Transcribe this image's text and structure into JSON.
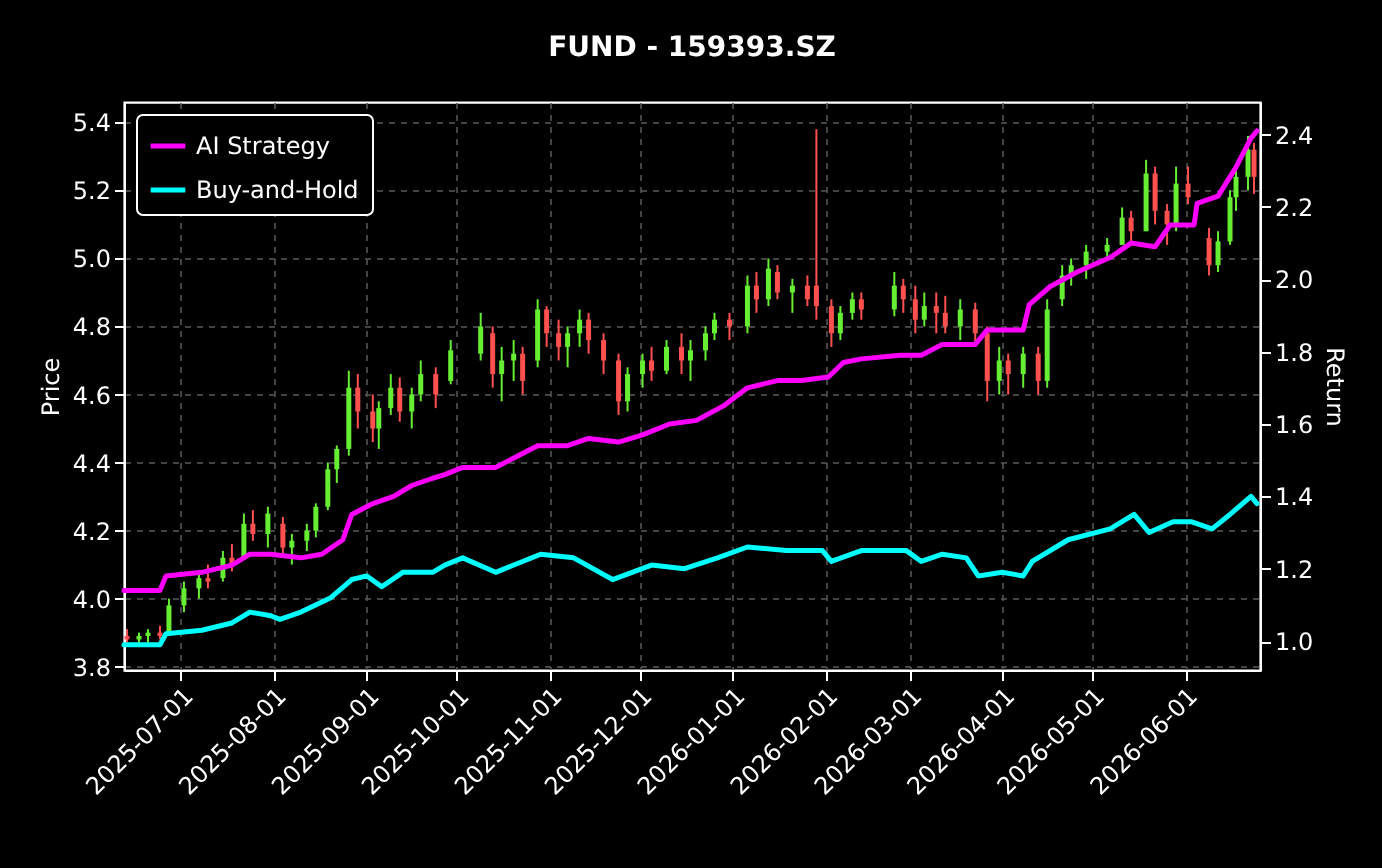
{
  "chart_data": {
    "type": "candlestick",
    "title": "FUND - 159393.SZ",
    "ylabel": "Price",
    "y2label": "Return",
    "x": [
      "2025-06-13",
      "2025-06-17",
      "2025-06-20",
      "2025-06-24",
      "2025-06-27",
      "2025-07-02",
      "2025-07-07",
      "2025-07-10",
      "2025-07-15",
      "2025-07-18",
      "2025-07-22",
      "2025-07-25",
      "2025-07-30",
      "2025-08-04",
      "2025-08-07",
      "2025-08-12",
      "2025-08-15",
      "2025-08-19",
      "2025-08-22",
      "2025-08-26",
      "2025-08-29",
      "2025-09-03",
      "2025-09-05",
      "2025-09-09",
      "2025-09-12",
      "2025-09-16",
      "2025-09-19",
      "2025-09-24",
      "2025-09-29",
      "2025-10-09",
      "2025-10-13",
      "2025-10-16",
      "2025-10-20",
      "2025-10-23",
      "2025-10-28",
      "2025-10-31",
      "2025-11-04",
      "2025-11-07",
      "2025-11-11",
      "2025-11-14",
      "2025-11-19",
      "2025-11-24",
      "2025-11-27",
      "2025-12-02",
      "2025-12-05",
      "2025-12-10",
      "2025-12-15",
      "2025-12-18",
      "2025-12-23",
      "2025-12-26",
      "2025-12-31",
      "2026-01-06",
      "2026-01-09",
      "2026-01-13",
      "2026-01-16",
      "2026-01-21",
      "2026-01-26",
      "2026-01-29",
      "2026-02-03",
      "2026-02-06",
      "2026-02-10",
      "2026-02-13",
      "2026-02-24",
      "2026-02-27",
      "2026-03-03",
      "2026-03-06",
      "2026-03-10",
      "2026-03-13",
      "2026-03-18",
      "2026-03-23",
      "2026-03-27",
      "2026-03-31",
      "2026-04-03",
      "2026-04-08",
      "2026-04-13",
      "2026-04-16",
      "2026-04-21",
      "2026-04-24",
      "2026-04-29",
      "2026-05-06",
      "2026-05-11",
      "2026-05-14",
      "2026-05-19",
      "2026-05-22",
      "2026-05-26",
      "2026-05-29",
      "2026-06-02",
      "2026-06-09",
      "2026-06-12",
      "2026-06-16",
      "2026-06-18",
      "2026-06-22",
      "2026-06-24"
    ],
    "ohlc": [
      [
        3.89,
        3.91,
        3.87,
        3.88
      ],
      [
        3.88,
        3.9,
        3.86,
        3.89
      ],
      [
        3.89,
        3.91,
        3.87,
        3.9
      ],
      [
        3.9,
        3.92,
        3.88,
        3.89
      ],
      [
        3.9,
        4.0,
        3.9,
        3.98
      ],
      [
        3.98,
        4.05,
        3.96,
        4.03
      ],
      [
        4.03,
        4.08,
        4.0,
        4.06
      ],
      [
        4.06,
        4.1,
        4.03,
        4.05
      ],
      [
        4.06,
        4.14,
        4.05,
        4.12
      ],
      [
        4.12,
        4.16,
        4.08,
        4.1
      ],
      [
        4.12,
        4.25,
        4.12,
        4.22
      ],
      [
        4.22,
        4.26,
        4.17,
        4.19
      ],
      [
        4.19,
        4.27,
        4.15,
        4.25
      ],
      [
        4.22,
        4.24,
        4.13,
        4.15
      ],
      [
        4.15,
        4.19,
        4.1,
        4.17
      ],
      [
        4.17,
        4.22,
        4.14,
        4.2
      ],
      [
        4.2,
        4.28,
        4.18,
        4.27
      ],
      [
        4.27,
        4.4,
        4.26,
        4.38
      ],
      [
        4.38,
        4.45,
        4.34,
        4.44
      ],
      [
        4.44,
        4.67,
        4.42,
        4.62
      ],
      [
        4.62,
        4.66,
        4.5,
        4.55
      ],
      [
        4.55,
        4.6,
        4.46,
        4.5
      ],
      [
        4.5,
        4.58,
        4.44,
        4.56
      ],
      [
        4.56,
        4.66,
        4.54,
        4.62
      ],
      [
        4.62,
        4.65,
        4.52,
        4.55
      ],
      [
        4.55,
        4.62,
        4.5,
        4.6
      ],
      [
        4.6,
        4.7,
        4.58,
        4.66
      ],
      [
        4.66,
        4.68,
        4.56,
        4.6
      ],
      [
        4.64,
        4.76,
        4.63,
        4.73
      ],
      [
        4.72,
        4.84,
        4.7,
        4.8
      ],
      [
        4.78,
        4.8,
        4.62,
        4.66
      ],
      [
        4.66,
        4.74,
        4.58,
        4.7
      ],
      [
        4.7,
        4.76,
        4.64,
        4.72
      ],
      [
        4.72,
        4.74,
        4.6,
        4.64
      ],
      [
        4.7,
        4.88,
        4.68,
        4.85
      ],
      [
        4.85,
        4.86,
        4.74,
        4.78
      ],
      [
        4.78,
        4.82,
        4.7,
        4.74
      ],
      [
        4.74,
        4.8,
        4.68,
        4.78
      ],
      [
        4.78,
        4.85,
        4.74,
        4.82
      ],
      [
        4.82,
        4.84,
        4.72,
        4.76
      ],
      [
        4.76,
        4.78,
        4.66,
        4.7
      ],
      [
        4.7,
        4.72,
        4.54,
        4.58
      ],
      [
        4.58,
        4.68,
        4.55,
        4.66
      ],
      [
        4.66,
        4.72,
        4.62,
        4.7
      ],
      [
        4.7,
        4.74,
        4.64,
        4.67
      ],
      [
        4.67,
        4.76,
        4.66,
        4.74
      ],
      [
        4.74,
        4.78,
        4.66,
        4.7
      ],
      [
        4.7,
        4.76,
        4.64,
        4.73
      ],
      [
        4.73,
        4.8,
        4.7,
        4.78
      ],
      [
        4.78,
        4.84,
        4.76,
        4.82
      ],
      [
        4.82,
        4.84,
        4.76,
        4.8
      ],
      [
        4.8,
        4.95,
        4.78,
        4.92
      ],
      [
        4.92,
        4.96,
        4.84,
        4.88
      ],
      [
        4.88,
        5.0,
        4.86,
        4.97
      ],
      [
        4.96,
        4.98,
        4.88,
        4.9
      ],
      [
        4.9,
        4.94,
        4.84,
        4.92
      ],
      [
        4.92,
        4.95,
        4.86,
        4.88
      ],
      [
        4.92,
        5.38,
        4.82,
        4.86
      ],
      [
        4.86,
        4.88,
        4.74,
        4.78
      ],
      [
        4.78,
        4.86,
        4.76,
        4.84
      ],
      [
        4.84,
        4.9,
        4.82,
        4.88
      ],
      [
        4.88,
        4.9,
        4.82,
        4.85
      ],
      [
        4.85,
        4.96,
        4.83,
        4.92
      ],
      [
        4.92,
        4.94,
        4.84,
        4.88
      ],
      [
        4.88,
        4.92,
        4.78,
        4.82
      ],
      [
        4.82,
        4.9,
        4.8,
        4.86
      ],
      [
        4.86,
        4.9,
        4.78,
        4.84
      ],
      [
        4.84,
        4.89,
        4.78,
        4.8
      ],
      [
        4.8,
        4.88,
        4.76,
        4.85
      ],
      [
        4.85,
        4.87,
        4.74,
        4.78
      ],
      [
        4.78,
        4.8,
        4.58,
        4.64
      ],
      [
        4.64,
        4.74,
        4.6,
        4.7
      ],
      [
        4.7,
        4.72,
        4.6,
        4.66
      ],
      [
        4.66,
        4.74,
        4.62,
        4.72
      ],
      [
        4.72,
        4.74,
        4.6,
        4.64
      ],
      [
        4.64,
        4.88,
        4.62,
        4.85
      ],
      [
        4.88,
        4.98,
        4.86,
        4.95
      ],
      [
        4.95,
        5.0,
        4.92,
        4.98
      ],
      [
        4.98,
        5.04,
        4.94,
        5.02
      ],
      [
        5.02,
        5.06,
        5.0,
        5.04
      ],
      [
        5.04,
        5.15,
        5.04,
        5.12
      ],
      [
        5.12,
        5.14,
        5.05,
        5.08
      ],
      [
        5.08,
        5.29,
        5.08,
        5.25
      ],
      [
        5.25,
        5.27,
        5.1,
        5.14
      ],
      [
        5.14,
        5.16,
        5.04,
        5.1
      ],
      [
        5.1,
        5.27,
        5.08,
        5.22
      ],
      [
        5.22,
        5.27,
        5.16,
        5.18
      ],
      [
        5.06,
        5.09,
        4.95,
        4.98
      ],
      [
        4.98,
        5.08,
        4.96,
        5.05
      ],
      [
        5.05,
        5.2,
        5.04,
        5.18
      ],
      [
        5.18,
        5.27,
        5.14,
        5.24
      ],
      [
        5.24,
        5.36,
        5.2,
        5.32
      ],
      [
        5.32,
        5.34,
        5.19,
        5.24
      ]
    ],
    "series": [
      {
        "name": "AI Strategy",
        "type": "line",
        "axis": "y2",
        "color": "#ff00ff",
        "x": [
          "2025-06-12",
          "2025-06-24",
          "2025-06-26",
          "2025-07-08",
          "2025-07-18",
          "2025-07-24",
          "2025-07-31",
          "2025-08-10",
          "2025-08-17",
          "2025-08-24",
          "2025-08-27",
          "2025-09-03",
          "2025-09-10",
          "2025-09-16",
          "2025-09-23",
          "2025-09-27",
          "2025-10-03",
          "2025-10-14",
          "2025-10-21",
          "2025-10-28",
          "2025-11-07",
          "2025-11-14",
          "2025-11-24",
          "2025-12-02",
          "2025-12-11",
          "2025-12-20",
          "2025-12-29",
          "2026-01-06",
          "2026-01-16",
          "2026-01-24",
          "2026-02-02",
          "2026-02-07",
          "2026-02-13",
          "2026-02-26",
          "2026-03-05",
          "2026-03-12",
          "2026-03-23",
          "2026-03-27",
          "2026-04-08",
          "2026-04-10",
          "2026-04-17",
          "2026-04-26",
          "2026-05-07",
          "2026-05-14",
          "2026-05-22",
          "2026-05-27",
          "2026-06-04",
          "2026-06-05",
          "2026-06-12",
          "2026-06-18",
          "2026-06-23",
          "2026-06-25"
        ],
        "values": [
          1.14,
          1.14,
          1.18,
          1.19,
          1.21,
          1.24,
          1.24,
          1.23,
          1.24,
          1.28,
          1.35,
          1.38,
          1.4,
          1.43,
          1.45,
          1.46,
          1.48,
          1.48,
          1.51,
          1.54,
          1.54,
          1.56,
          1.55,
          1.57,
          1.6,
          1.61,
          1.65,
          1.7,
          1.72,
          1.72,
          1.73,
          1.77,
          1.78,
          1.79,
          1.79,
          1.82,
          1.82,
          1.86,
          1.86,
          1.93,
          1.98,
          2.02,
          2.06,
          2.1,
          2.09,
          2.15,
          2.15,
          2.21,
          2.23,
          2.31,
          2.39,
          2.41
        ]
      },
      {
        "name": "Buy-and-Hold",
        "type": "line",
        "axis": "y2",
        "color": "#00ffff",
        "x": [
          "2025-06-12",
          "2025-06-24",
          "2025-06-26",
          "2025-07-08",
          "2025-07-18",
          "2025-07-24",
          "2025-07-31",
          "2025-08-03",
          "2025-08-10",
          "2025-08-20",
          "2025-08-27",
          "2025-09-01",
          "2025-09-06",
          "2025-09-13",
          "2025-09-23",
          "2025-09-27",
          "2025-10-03",
          "2025-10-14",
          "2025-10-29",
          "2025-11-09",
          "2025-11-22",
          "2025-12-05",
          "2025-12-16",
          "2025-12-27",
          "2026-01-06",
          "2026-01-19",
          "2026-01-31",
          "2026-02-03",
          "2026-02-13",
          "2026-02-28",
          "2026-03-05",
          "2026-03-12",
          "2026-03-20",
          "2026-03-24",
          "2026-04-01",
          "2026-04-08",
          "2026-04-11",
          "2026-04-23",
          "2026-05-07",
          "2026-05-15",
          "2026-05-20",
          "2026-05-28",
          "2026-06-03",
          "2026-06-10",
          "2026-06-16",
          "2026-06-23",
          "2026-06-25"
        ],
        "values": [
          0.99,
          0.99,
          1.02,
          1.03,
          1.05,
          1.08,
          1.07,
          1.06,
          1.08,
          1.12,
          1.17,
          1.18,
          1.15,
          1.19,
          1.19,
          1.21,
          1.23,
          1.19,
          1.24,
          1.23,
          1.17,
          1.21,
          1.2,
          1.23,
          1.26,
          1.25,
          1.25,
          1.22,
          1.25,
          1.25,
          1.22,
          1.24,
          1.23,
          1.18,
          1.19,
          1.18,
          1.22,
          1.28,
          1.31,
          1.35,
          1.3,
          1.33,
          1.33,
          1.31,
          1.35,
          1.4,
          1.38
        ]
      }
    ],
    "xlim": [
      "2025-06-12",
      "2026-06-26"
    ],
    "xticks": [
      "2025-07-01",
      "2025-08-01",
      "2025-09-01",
      "2025-10-01",
      "2025-11-01",
      "2025-12-01",
      "2026-01-01",
      "2026-02-01",
      "2026-03-01",
      "2026-04-01",
      "2026-05-01",
      "2026-06-01"
    ],
    "ylim": [
      3.79,
      5.46
    ],
    "yticks": [
      3.8,
      4.2,
      4.4,
      4.6,
      4.8,
      5.2,
      5.4,
      {
        "value": 4,
        "label": "4.0"
      },
      {
        "value": 5,
        "label": "5.0"
      }
    ],
    "y2lim": [
      0.92,
      2.49
    ],
    "y2ticks": [
      {
        "value": 1,
        "label": "1.0"
      },
      1.2,
      1.4,
      1.6,
      1.8,
      {
        "value": 2,
        "label": "2.0"
      },
      2.2,
      2.4
    ],
    "grid": true,
    "legend": "top left"
  }
}
